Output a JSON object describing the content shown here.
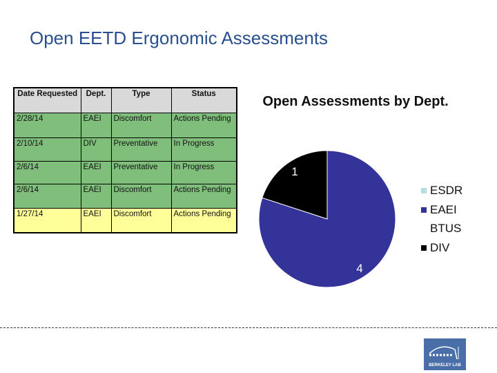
{
  "title": "Open EETD Ergonomic Assessments",
  "table": {
    "headers": [
      "Date Requested",
      "Dept.",
      "Type",
      "Status"
    ],
    "rows": [
      [
        "2/28/14",
        "EAEI",
        "Discomfort",
        "Actions Pending"
      ],
      [
        "2/10/14",
        "DIV",
        "Preventative",
        "In Progress"
      ],
      [
        "2/6/14",
        "EAEI",
        "Preventative",
        "In Progress"
      ],
      [
        "2/6/14",
        "EAEI",
        "Discomfort",
        "Actions Pending"
      ],
      [
        "1/27/14",
        "EAEI",
        "Discomfort",
        "Actions Pending"
      ]
    ],
    "row_colors": [
      "#7fbf7b",
      "#7fbf7b",
      "#7fbf7b",
      "#7fbf7b",
      "#ffff99"
    ]
  },
  "chart_data": {
    "type": "pie",
    "title": "Open Assessments by Dept.",
    "categories": [
      "ESDR",
      "EAEI",
      "BTUS",
      "DIV"
    ],
    "values": [
      0,
      4,
      0,
      1
    ],
    "colors": [
      "#b3dfe0",
      "#333399",
      "#ffffff",
      "#000000"
    ],
    "data_labels": [
      "",
      "4",
      "",
      "1"
    ],
    "legend": "right"
  },
  "logo": "BERKELEY LAB"
}
